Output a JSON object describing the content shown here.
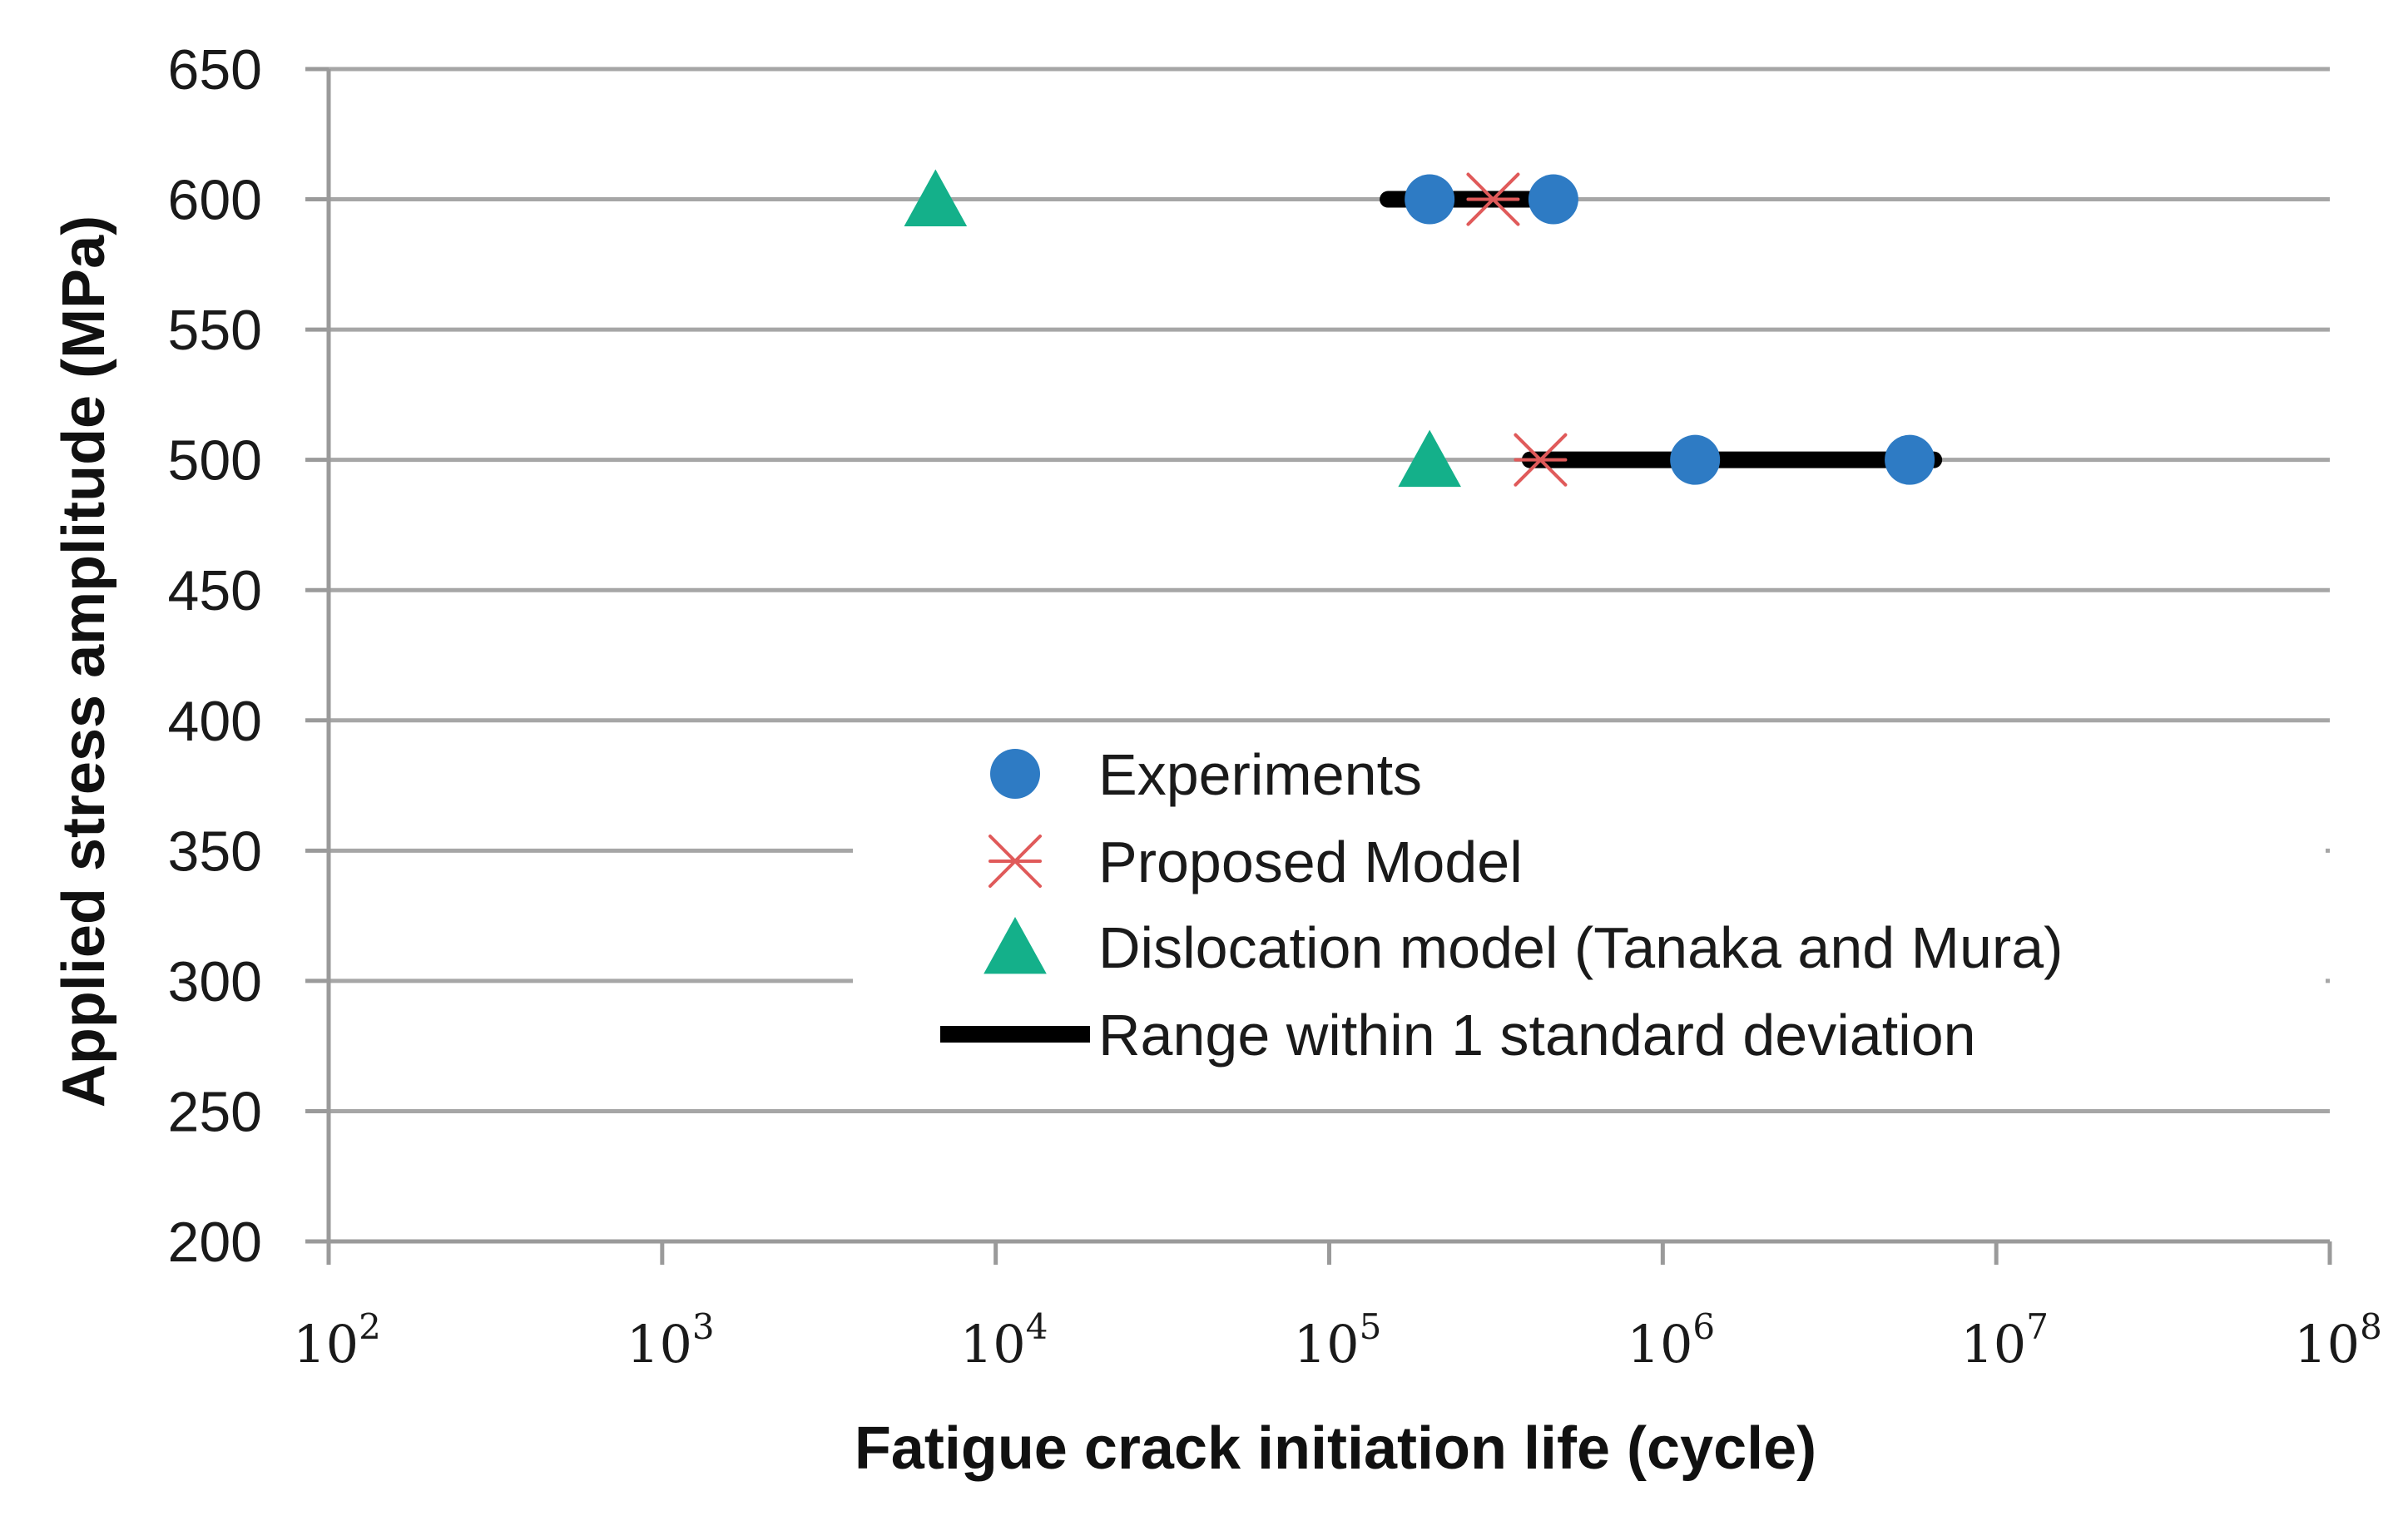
{
  "chart_data": {
    "type": "scatter",
    "title": "",
    "xlabel": "Fatigue crack initiation life (cycle)",
    "ylabel": "Applied stress amplitude (MPa)",
    "x_scale": "log",
    "xlim": [
      100,
      100000000
    ],
    "ylim": [
      200,
      650
    ],
    "x_ticks": [
      {
        "value": 100,
        "base": "10",
        "exp": "2"
      },
      {
        "value": 1000,
        "base": "10",
        "exp": "3"
      },
      {
        "value": 10000,
        "base": "10",
        "exp": "4"
      },
      {
        "value": 100000,
        "base": "10",
        "exp": "5"
      },
      {
        "value": 1000000,
        "base": "10",
        "exp": "6"
      },
      {
        "value": 10000000,
        "base": "10",
        "exp": "7"
      },
      {
        "value": 100000000,
        "base": "10",
        "exp": "8"
      }
    ],
    "y_ticks": [
      200,
      250,
      300,
      350,
      400,
      450,
      500,
      550,
      600,
      650
    ],
    "grid": "horizontal",
    "legend_position": "center",
    "series": [
      {
        "name": "Experiments",
        "marker": "circle",
        "color": "#2E7BC4",
        "points": [
          {
            "x": 200000,
            "y": 600
          },
          {
            "x": 470000,
            "y": 600
          },
          {
            "x": 1250000,
            "y": 500
          },
          {
            "x": 5500000,
            "y": 500
          }
        ]
      },
      {
        "name": "Proposed Model",
        "marker": "asterisk",
        "color": "#E05A5A",
        "points": [
          {
            "x": 310000,
            "y": 600
          },
          {
            "x": 430000,
            "y": 500
          }
        ]
      },
      {
        "name": "Dislocation model (Tanaka and Mura)",
        "marker": "triangle",
        "color": "#14B08A",
        "points": [
          {
            "x": 6600,
            "y": 600
          },
          {
            "x": 200000,
            "y": 500
          }
        ]
      },
      {
        "name": "Range within 1 standard deviation",
        "marker": "line",
        "color": "#000000",
        "ranges": [
          {
            "y": 600,
            "x_min": 150000,
            "x_max": 520000
          },
          {
            "y": 500,
            "x_min": 400000,
            "x_max": 6500000
          }
        ]
      }
    ]
  }
}
